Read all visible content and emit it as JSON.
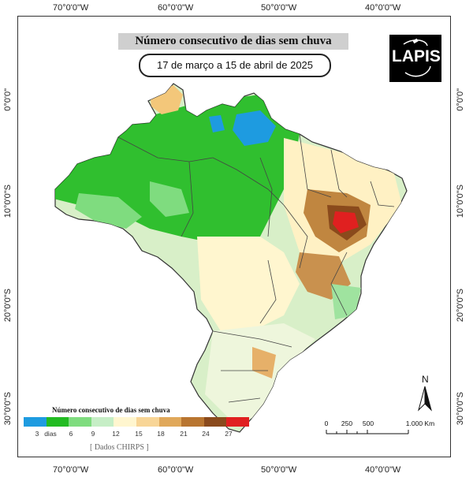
{
  "title": "Número consecutivo de dias sem chuva",
  "subtitle": "17 de março a 15 de abril de 2025",
  "logo_text": "LAPIS",
  "top_axis": [
    "70°0'0\"W",
    "60°0'0\"W",
    "50°0'0\"W",
    "40°0'0\"W"
  ],
  "bottom_axis": [
    "70°0'0\"W",
    "60°0'0\"W",
    "50°0'0\"W",
    "40°0'0\"W"
  ],
  "left_axis": [
    "0°0'0\"",
    "10°0'0\"S",
    "20°0'0\"S",
    "30°0'0\"S"
  ],
  "right_axis": [
    "0°0'0\"",
    "10°0'0\"S",
    "20°0'0\"S",
    "30°0'0\"S"
  ],
  "legend": {
    "title": "Número consecutivo de dias sem chuva",
    "colors": [
      "#1e9be0",
      "#22bb22",
      "#7fdc7f",
      "#c6eec6",
      "#fff6cf",
      "#f8d596",
      "#e0a85a",
      "#b87530",
      "#8a4a1c",
      "#e02020"
    ],
    "labels": [
      "3",
      "dias",
      "6",
      "9",
      "12",
      "15",
      "18",
      "21",
      "24",
      "27"
    ]
  },
  "source_label": "[ Dados CHIRPS ]",
  "north_label": "N",
  "scale_bar": {
    "labels": [
      "0",
      "250",
      "500",
      "1.000 Km"
    ]
  }
}
